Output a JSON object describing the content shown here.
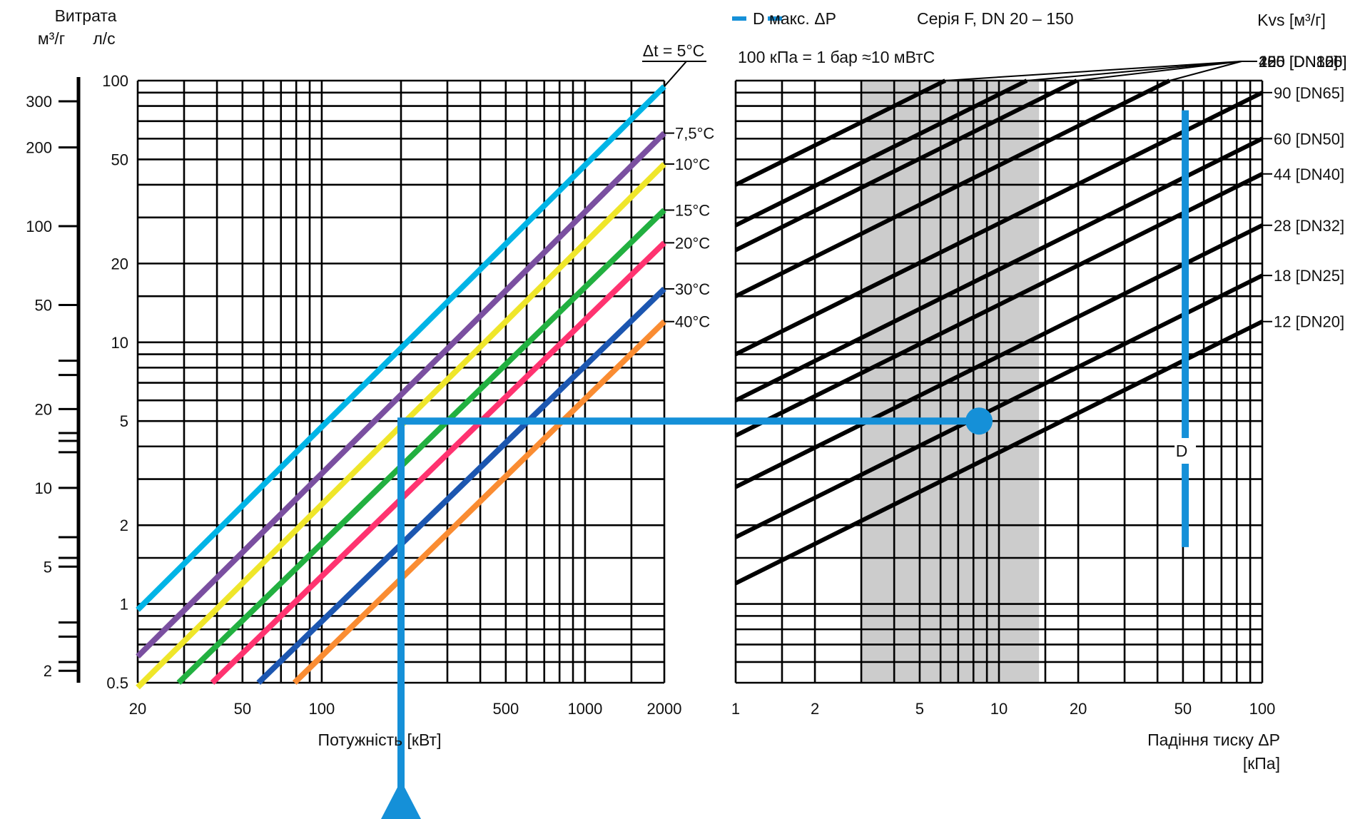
{
  "header": {
    "flow_title": "Витрата",
    "flow_units_m3h": "м³/г",
    "flow_units_ls": "л/с",
    "legend_text": "D макс. ΔP",
    "series_title": "Серія F, DN 20 – 150",
    "pressure_note": "100 кПа = 1 бар ≈10 мВтС",
    "kvs_label": "Kvs [м³/г]",
    "dt_title": "Δt = 5°C",
    "d_marker": "D"
  },
  "colors": {
    "highlight": "#1590d8",
    "shade": "#cccccc"
  },
  "chart_data": [
    {
      "type": "line",
      "name": "power-flow",
      "xlabel": "Потужність   [кВт]",
      "ylabel": "",
      "x_scale": "log",
      "y_scale": "log",
      "xlim": [
        20,
        2000
      ],
      "ylim": [
        0.5,
        100
      ],
      "x_ticks": [
        20,
        50,
        100,
        500,
        1000,
        2000
      ],
      "y_ticks": [
        0.5,
        1,
        2,
        5,
        10,
        20,
        50,
        100
      ],
      "y_ticks_outer": [
        2,
        5,
        10,
        20,
        50,
        100,
        200,
        300
      ],
      "series": [
        {
          "name": "",
          "label": "",
          "color": "#00b4e6",
          "x": [
            20,
            2000
          ],
          "y": [
            0.95,
            95
          ]
        },
        {
          "name": "",
          "label": "7,5°C",
          "color": "#7a4fa0",
          "x": [
            20,
            2000
          ],
          "y": [
            0.63,
            63
          ]
        },
        {
          "name": "",
          "label": "10°C",
          "color": "#efe62a",
          "x": [
            20,
            2000
          ],
          "y": [
            0.48,
            48
          ]
        },
        {
          "name": "",
          "label": "15°C",
          "color": "#22b040",
          "x": [
            28.6,
            2000
          ],
          "y": [
            0.5,
            32
          ]
        },
        {
          "name": "",
          "label": "20°C",
          "color": "#ff3370",
          "x": [
            38.4,
            2000
          ],
          "y": [
            0.5,
            24
          ]
        },
        {
          "name": "",
          "label": "30°C",
          "color": "#1c56b0",
          "x": [
            57.5,
            2000
          ],
          "y": [
            0.5,
            16
          ]
        },
        {
          "name": "",
          "label": "40°C",
          "color": "#fa8c32",
          "x": [
            78.8,
            2000
          ],
          "y": [
            0.5,
            12
          ]
        }
      ],
      "example_path": {
        "x": 200,
        "y": 5
      }
    },
    {
      "type": "line",
      "name": "pressure-drop",
      "xlabel": "Падіння тиску ΔP",
      "xlabel_units": "[кПа]",
      "ylabel": "",
      "x_scale": "log",
      "y_scale": "log",
      "xlim": [
        1,
        100
      ],
      "ylim": [
        0.5,
        100
      ],
      "x_ticks": [
        1,
        2,
        5,
        10,
        20,
        50,
        100
      ],
      "shaded_band": [
        3,
        14.2
      ],
      "series": [
        {
          "name": "",
          "label": "400 [DN150]",
          "kvs": 400
        },
        {
          "name": "",
          "label": "280 [DN125]",
          "kvs": 280
        },
        {
          "name": "",
          "label": "225 [DN100]",
          "kvs": 225
        },
        {
          "name": "",
          "label": "150 [DN80]",
          "kvs": 150
        },
        {
          "name": "",
          "label": "90 [DN65]",
          "kvs": 90
        },
        {
          "name": "",
          "label": "60 [DN50]",
          "kvs": 60
        },
        {
          "name": "",
          "label": "44 [DN40]",
          "kvs": 44
        },
        {
          "name": "",
          "label": "28 [DN32]",
          "kvs": 28
        },
        {
          "name": "",
          "label": "18 [DN25]",
          "kvs": 18
        },
        {
          "name": "",
          "label": "12 [DN20]",
          "kvs": 12
        }
      ],
      "example_point": {
        "x": 8.4,
        "y": 5
      },
      "max_dp_line": {
        "x": 51,
        "y": [
          1.65,
          77
        ]
      }
    }
  ]
}
